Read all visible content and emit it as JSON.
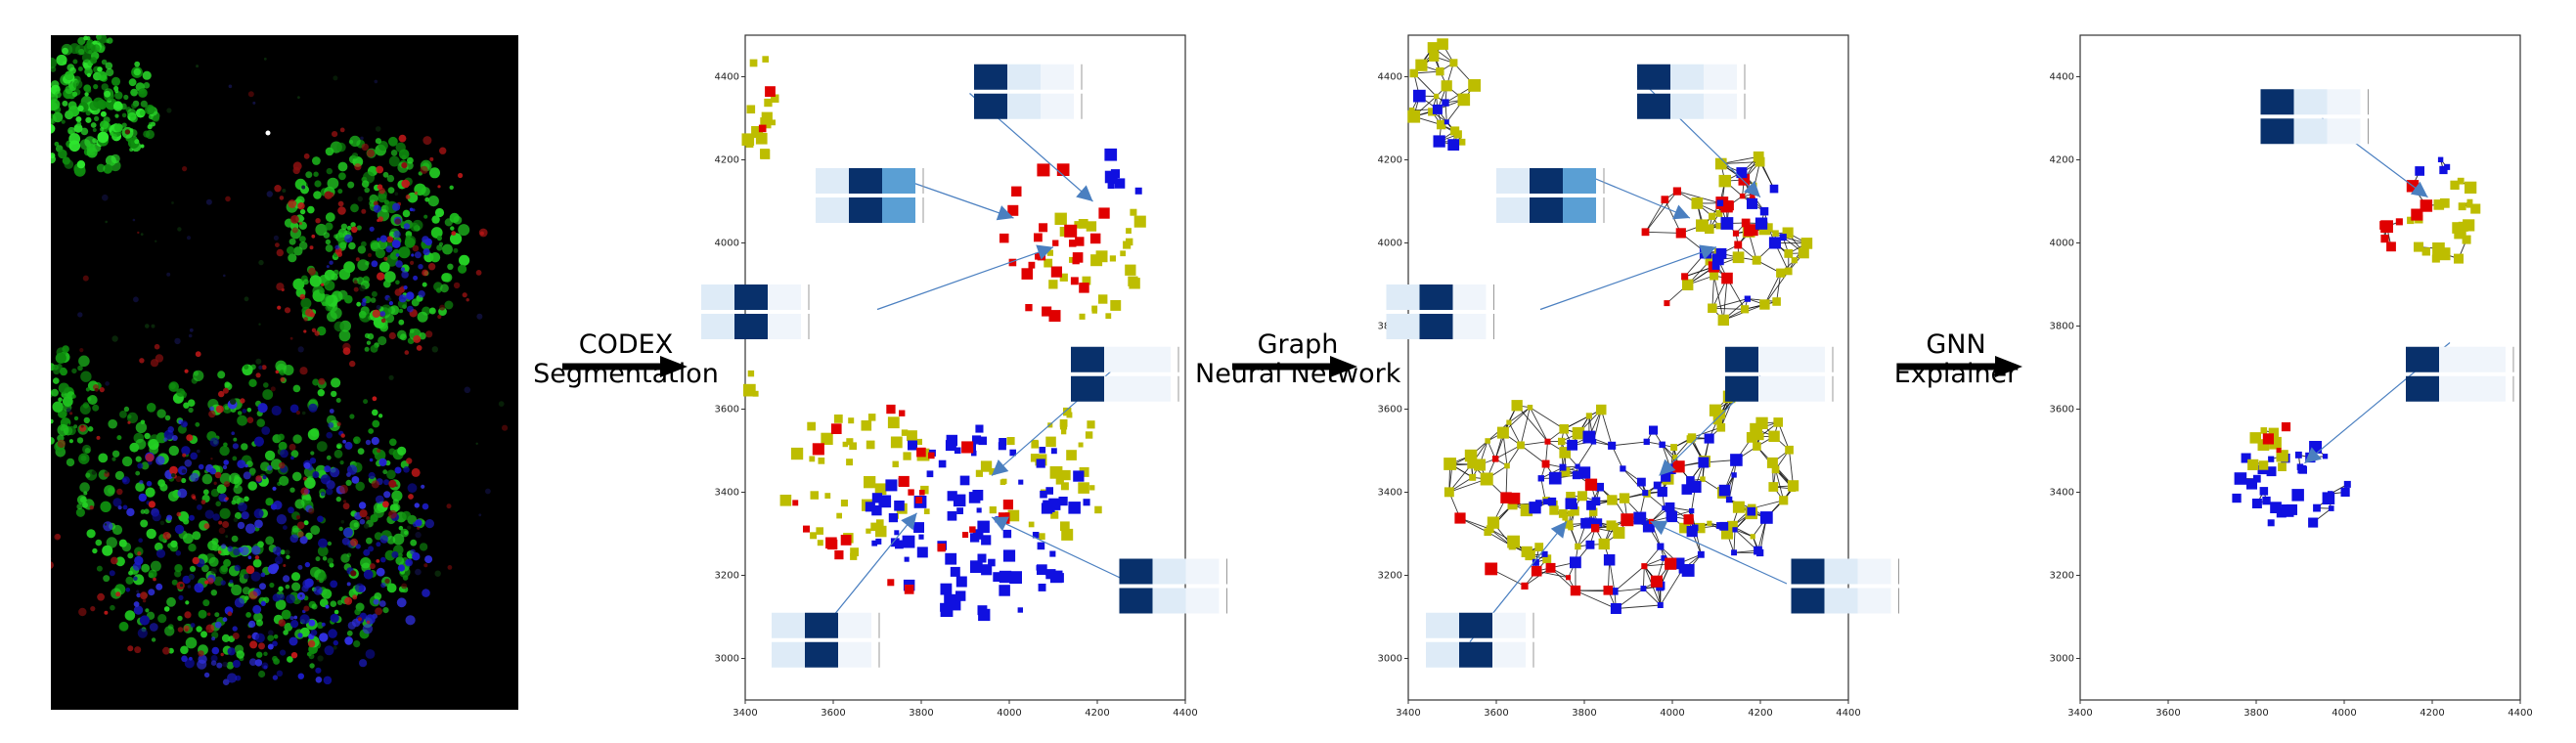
{
  "microscopy": {
    "label": "microscopy-image"
  },
  "steps": [
    {
      "line1": "CODEX",
      "line2": "Segmentation"
    },
    {
      "line1": "Graph",
      "line2": "Neural Network"
    },
    {
      "line1": "GNN",
      "line2": "Explainer"
    }
  ],
  "colors": {
    "yellow": "#bdbd00",
    "blue": "#1010e0",
    "red": "#e00000",
    "edge": "#111111",
    "annotation_arrow": "#4a7fc0",
    "heat_dark": "#08306b",
    "heat_mid": "#5a9fd4",
    "heat_light": "#deebf7",
    "heat_faint": "#f0f5fb"
  },
  "chart_data": [
    {
      "type": "scatter",
      "name_role": "segmentation",
      "title": "",
      "xlabel": "",
      "ylabel": "",
      "xlim": [
        3400,
        4400
      ],
      "ylim": [
        2900,
        4500
      ],
      "xticks": [
        3400,
        3600,
        3800,
        4000,
        4200,
        4400
      ],
      "yticks": [
        3000,
        3200,
        3400,
        3600,
        3800,
        4000,
        4200,
        4400
      ],
      "grid": false,
      "edges": false,
      "clusters": [
        {
          "color": "yellow",
          "cx": 3440,
          "cy": 4330,
          "rx": 50,
          "ry": 130,
          "n": 16,
          "seed": 11
        },
        {
          "color": "red",
          "cx": 3440,
          "cy": 4300,
          "rx": 40,
          "ry": 80,
          "n": 2,
          "seed": 12
        },
        {
          "color": "yellow",
          "cx": 4200,
          "cy": 3970,
          "rx": 120,
          "ry": 160,
          "n": 30,
          "seed": 13
        },
        {
          "color": "red",
          "cx": 4100,
          "cy": 4000,
          "rx": 130,
          "ry": 180,
          "n": 26,
          "seed": 14
        },
        {
          "color": "blue",
          "cx": 4230,
          "cy": 4150,
          "rx": 70,
          "ry": 90,
          "n": 7,
          "seed": 15
        },
        {
          "color": "yellow",
          "cx": 3660,
          "cy": 3420,
          "rx": 180,
          "ry": 180,
          "n": 45,
          "seed": 16
        },
        {
          "color": "yellow",
          "cx": 4080,
          "cy": 3450,
          "rx": 150,
          "ry": 170,
          "n": 38,
          "seed": 17
        },
        {
          "color": "blue",
          "cx": 3930,
          "cy": 3330,
          "rx": 260,
          "ry": 230,
          "n": 95,
          "seed": 18
        },
        {
          "color": "red",
          "cx": 3800,
          "cy": 3380,
          "rx": 300,
          "ry": 230,
          "n": 24,
          "seed": 19
        },
        {
          "color": "yellow",
          "cx": 3410,
          "cy": 3680,
          "rx": 20,
          "ry": 60,
          "n": 4,
          "seed": 20
        }
      ],
      "arrows": [
        {
          "from": [
            3910,
            4360
          ],
          "to": [
            4190,
            4100
          ]
        },
        {
          "from": [
            3740,
            4160
          ],
          "to": [
            4010,
            4060
          ]
        },
        {
          "from": [
            3700,
            3840
          ],
          "to": [
            4100,
            3990
          ]
        },
        {
          "from": [
            4230,
            3690
          ],
          "to": [
            3960,
            3440
          ]
        },
        {
          "from": [
            3560,
            3050
          ],
          "to": [
            3790,
            3350
          ]
        },
        {
          "from": [
            4280,
            3180
          ],
          "to": [
            3960,
            3340
          ]
        }
      ],
      "insets": [
        {
          "x": 3920,
          "y": 4430,
          "cells": [
            "dark",
            "light",
            "faint"
          ],
          "rows": 2
        },
        {
          "x": 3560,
          "y": 4180,
          "cells": [
            "light",
            "dark",
            "mid"
          ],
          "rows": 2
        },
        {
          "x": 3300,
          "y": 3900,
          "cells": [
            "light",
            "dark",
            "faint"
          ],
          "rows": 2
        },
        {
          "x": 4140,
          "y": 3750,
          "cells": [
            "dark",
            "faint",
            "faint"
          ],
          "rows": 2
        },
        {
          "x": 3460,
          "y": 3110,
          "cells": [
            "light",
            "dark",
            "faint"
          ],
          "rows": 2
        },
        {
          "x": 4250,
          "y": 3240,
          "cells": [
            "dark",
            "light",
            "faint"
          ],
          "rows": 2
        }
      ]
    },
    {
      "type": "scatter",
      "name_role": "graph",
      "title": "",
      "xlabel": "",
      "ylabel": "",
      "xlim": [
        3400,
        4400
      ],
      "ylim": [
        2900,
        4500
      ],
      "xticks": [
        3400,
        3600,
        3800,
        4000,
        4200,
        4400
      ],
      "yticks": [
        3000,
        3200,
        3400,
        3600,
        3800,
        4000,
        4200,
        4400
      ],
      "grid": false,
      "edges": true,
      "clusters": [
        {
          "color": "yellow",
          "cx": 3480,
          "cy": 4360,
          "rx": 80,
          "ry": 140,
          "n": 18,
          "seed": 31
        },
        {
          "color": "blue",
          "cx": 3470,
          "cy": 4320,
          "rx": 60,
          "ry": 100,
          "n": 6,
          "seed": 32
        },
        {
          "color": "yellow",
          "cx": 4150,
          "cy": 4010,
          "rx": 160,
          "ry": 210,
          "n": 34,
          "seed": 33
        },
        {
          "color": "red",
          "cx": 4080,
          "cy": 4000,
          "rx": 150,
          "ry": 200,
          "n": 20,
          "seed": 34
        },
        {
          "color": "blue",
          "cx": 4160,
          "cy": 4040,
          "rx": 150,
          "ry": 200,
          "n": 14,
          "seed": 35
        },
        {
          "color": "yellow",
          "cx": 3720,
          "cy": 3430,
          "rx": 230,
          "ry": 200,
          "n": 55,
          "seed": 36
        },
        {
          "color": "yellow",
          "cx": 4130,
          "cy": 3450,
          "rx": 160,
          "ry": 180,
          "n": 40,
          "seed": 37
        },
        {
          "color": "blue",
          "cx": 3940,
          "cy": 3330,
          "rx": 290,
          "ry": 230,
          "n": 75,
          "seed": 38
        },
        {
          "color": "red",
          "cx": 3800,
          "cy": 3360,
          "rx": 300,
          "ry": 230,
          "n": 22,
          "seed": 39
        }
      ],
      "arrows": [
        {
          "from": [
            3920,
            4400
          ],
          "to": [
            4200,
            4110
          ]
        },
        {
          "from": [
            3790,
            4170
          ],
          "to": [
            4040,
            4060
          ]
        },
        {
          "from": [
            3700,
            3840
          ],
          "to": [
            4100,
            3990
          ]
        },
        {
          "from": [
            4200,
            3680
          ],
          "to": [
            3970,
            3440
          ]
        },
        {
          "from": [
            3540,
            3040
          ],
          "to": [
            3760,
            3330
          ]
        },
        {
          "from": [
            4260,
            3180
          ],
          "to": [
            3950,
            3330
          ]
        }
      ],
      "insets": [
        {
          "x": 3920,
          "y": 4430,
          "cells": [
            "dark",
            "light",
            "faint"
          ],
          "rows": 2
        },
        {
          "x": 3600,
          "y": 4180,
          "cells": [
            "light",
            "dark",
            "mid"
          ],
          "rows": 2
        },
        {
          "x": 3350,
          "y": 3900,
          "cells": [
            "light",
            "dark",
            "faint"
          ],
          "rows": 2
        },
        {
          "x": 4120,
          "y": 3750,
          "cells": [
            "dark",
            "faint",
            "faint"
          ],
          "rows": 2
        },
        {
          "x": 3440,
          "y": 3110,
          "cells": [
            "light",
            "dark",
            "faint"
          ],
          "rows": 2
        },
        {
          "x": 4270,
          "y": 3240,
          "cells": [
            "dark",
            "light",
            "faint"
          ],
          "rows": 2
        }
      ]
    },
    {
      "type": "scatter",
      "name_role": "explainer",
      "title": "",
      "xlabel": "",
      "ylabel": "",
      "xlim": [
        3400,
        4400
      ],
      "ylim": [
        2900,
        4500
      ],
      "xticks": [
        3400,
        3600,
        3800,
        4000,
        4200,
        4400
      ],
      "yticks": [
        3000,
        3200,
        3400,
        3600,
        3800,
        4000,
        4200,
        4400
      ],
      "grid": false,
      "edges": true,
      "sparse_edges": true,
      "clusters": [
        {
          "color": "yellow",
          "cx": 4230,
          "cy": 4060,
          "rx": 80,
          "ry": 110,
          "n": 22,
          "seed": 51
        },
        {
          "color": "red",
          "cx": 4130,
          "cy": 4060,
          "rx": 60,
          "ry": 90,
          "n": 8,
          "seed": 52
        },
        {
          "color": "blue",
          "cx": 4200,
          "cy": 4180,
          "rx": 40,
          "ry": 40,
          "n": 4,
          "seed": 53
        },
        {
          "color": "blue",
          "cx": 3880,
          "cy": 3420,
          "rx": 140,
          "ry": 100,
          "n": 32,
          "seed": 54
        },
        {
          "color": "yellow",
          "cx": 3830,
          "cy": 3500,
          "rx": 60,
          "ry": 70,
          "n": 10,
          "seed": 55
        },
        {
          "color": "red",
          "cx": 3840,
          "cy": 3530,
          "rx": 40,
          "ry": 40,
          "n": 3,
          "seed": 56
        }
      ],
      "arrows": [
        {
          "from": [
            3950,
            4300
          ],
          "to": [
            4190,
            4110
          ]
        },
        {
          "from": [
            4240,
            3760
          ],
          "to": [
            3910,
            3470
          ]
        }
      ],
      "insets": [
        {
          "x": 3810,
          "y": 4370,
          "cells": [
            "dark",
            "light",
            "faint"
          ],
          "rows": 2
        },
        {
          "x": 4140,
          "y": 3750,
          "cells": [
            "dark",
            "faint",
            "faint"
          ],
          "rows": 2
        }
      ]
    }
  ]
}
